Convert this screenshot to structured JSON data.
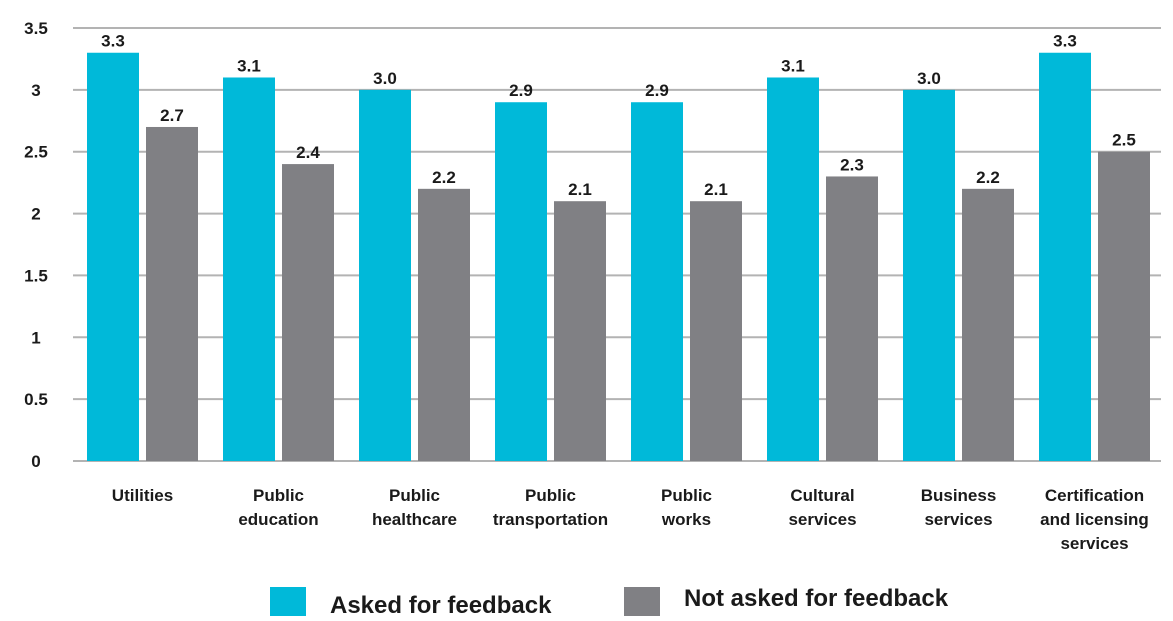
{
  "chart_data": {
    "type": "bar",
    "title": "",
    "xlabel": "",
    "ylabel": "",
    "ylim": [
      0,
      3.5
    ],
    "yticks": [
      "0",
      "0.5",
      "1",
      "1.5",
      "2",
      "2.5",
      "3",
      "3.5"
    ],
    "grid": true,
    "legend_position": "bottom",
    "categories": [
      [
        "Utilities"
      ],
      [
        "Public",
        "education"
      ],
      [
        "Public",
        "healthcare"
      ],
      [
        "Public",
        "transportation"
      ],
      [
        "Public",
        "works"
      ],
      [
        "Cultural",
        "services"
      ],
      [
        "Business",
        "services"
      ],
      [
        "Certification",
        "and licensing",
        "services"
      ]
    ],
    "series": [
      {
        "name": "Asked for feedback",
        "color": "#00b9d9",
        "values": [
          3.3,
          3.1,
          3.0,
          2.9,
          2.9,
          3.1,
          3.0,
          3.3
        ],
        "labels": [
          "3.3",
          "3.1",
          "3.0",
          "2.9",
          "2.9",
          "3.1",
          "3.0",
          "3.3"
        ]
      },
      {
        "name": "Not asked for feedback",
        "color": "#808084",
        "values": [
          2.7,
          2.4,
          2.2,
          2.1,
          2.1,
          2.3,
          2.2,
          2.5
        ],
        "labels": [
          "2.7",
          "2.4",
          "2.2",
          "2.1",
          "2.1",
          "2.3",
          "2.2",
          "2.5"
        ]
      }
    ],
    "gridline_color": "#b3b3b3"
  }
}
